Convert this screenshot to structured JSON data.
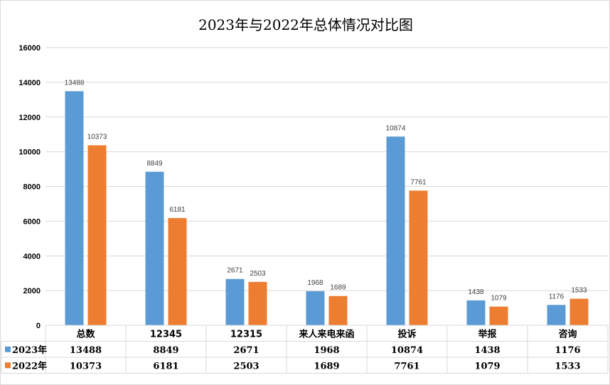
{
  "chart_data": {
    "type": "bar",
    "title": "2023年与2022年总体情况对比图",
    "categories": [
      "总数",
      "12345",
      "12315",
      "来人来电来函",
      "投诉",
      "举报",
      "咨询"
    ],
    "series": [
      {
        "name": "2023年",
        "color": "#5b9bd5",
        "values": [
          13488,
          8849,
          2671,
          1968,
          10874,
          1438,
          1176
        ]
      },
      {
        "name": "2022年",
        "color": "#ed7d31",
        "values": [
          10373,
          6181,
          2503,
          1689,
          7761,
          1079,
          1533
        ]
      }
    ],
    "ylim": [
      0,
      16000
    ],
    "yticks": [
      "0",
      "2000",
      "4000",
      "6000",
      "8000",
      "10000",
      "12000",
      "14000",
      "16000"
    ],
    "grid": true,
    "legend": "data-table"
  }
}
